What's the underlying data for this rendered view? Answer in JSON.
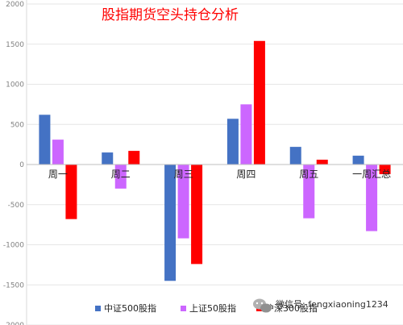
{
  "chart_data": {
    "type": "bar",
    "title": "股指期货空头持仓分析",
    "categories": [
      "周一",
      "周二",
      "周三",
      "周四",
      "周五",
      "一周汇总"
    ],
    "series": [
      {
        "name": "中证500股指",
        "color": "#4472c4",
        "values": [
          620,
          150,
          -1450,
          570,
          220,
          110
        ]
      },
      {
        "name": "上证50股指",
        "color": "#cc66ff",
        "values": [
          310,
          -300,
          -920,
          750,
          -670,
          -830
        ]
      },
      {
        "name": "沪深300股指",
        "color": "#ff0000",
        "values": [
          -680,
          170,
          -1240,
          1540,
          60,
          -120
        ]
      }
    ],
    "ylim": [
      -2000,
      2000
    ],
    "yticks": [
      2000,
      1500,
      1000,
      500,
      0,
      -500,
      -1000,
      -1500,
      -2000
    ],
    "grid": true,
    "legend_position": "bottom"
  },
  "watermark": {
    "text": "微信号: fengxiaoning1234",
    "icon": "wechat-icon"
  }
}
